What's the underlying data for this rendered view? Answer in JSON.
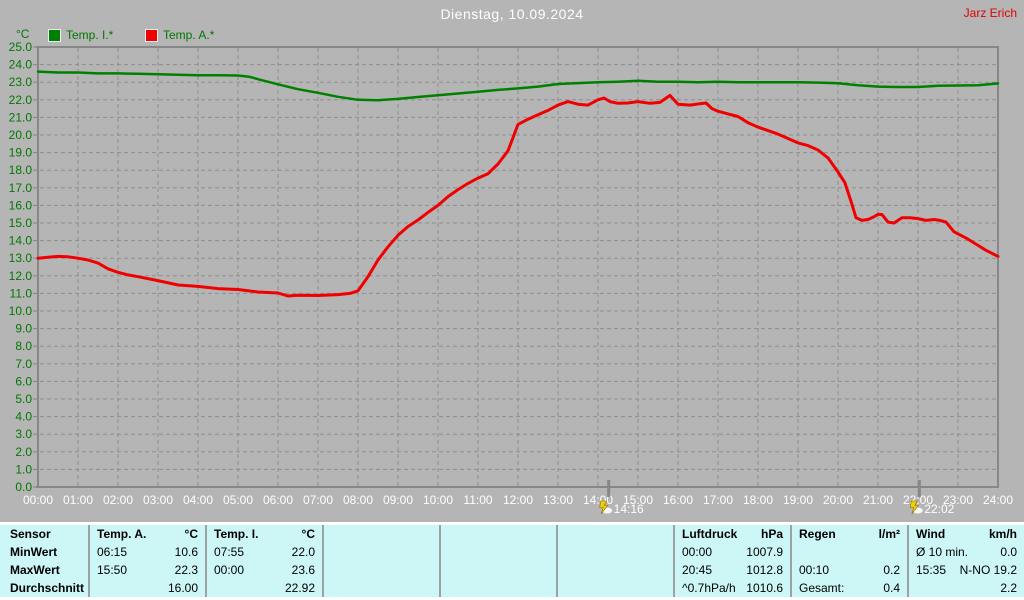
{
  "header": {
    "title": "Dienstag, 10.09.2024",
    "station": "Jarz Erich"
  },
  "legend": {
    "unit": "°C",
    "items": [
      {
        "label": "Temp. I.*",
        "color": "#008000"
      },
      {
        "label": "Temp. A.*",
        "color": "#f00000"
      }
    ]
  },
  "colors": {
    "background": "#b5b5b5",
    "grid": "#8e8e8e",
    "axis": "#878787",
    "axis_label_y": "#007800",
    "axis_label_x": "#ffffff",
    "title_text": "#ffffff",
    "station_text": "#e00000",
    "table_bg": "#cdf6f6",
    "temp_inside": "#008000",
    "temp_outside": "#f00000"
  },
  "chart_data": {
    "type": "line",
    "title": "Dienstag, 10.09.2024",
    "ylabel": "°C",
    "ylim": [
      0,
      25
    ],
    "ytick_step": 1,
    "ytick_decimals": 1,
    "xlim_hours": [
      0,
      24
    ],
    "xtick_labels": [
      "00:00",
      "01:00",
      "02:00",
      "03:00",
      "04:00",
      "05:00",
      "06:00",
      "07:00",
      "08:00",
      "09:00",
      "10:00",
      "11:00",
      "12:00",
      "13:00",
      "14:00",
      "15:00",
      "16:00",
      "17:00",
      "18:00",
      "19:00",
      "20:00",
      "21:00",
      "22:00",
      "23:00",
      "24:00"
    ],
    "grid": true,
    "legend_position": "top-left",
    "series": [
      {
        "name": "Temp. I.*",
        "color": "#008000",
        "points": [
          [
            0,
            23.6
          ],
          [
            0.5,
            23.55
          ],
          [
            1,
            23.55
          ],
          [
            1.5,
            23.5
          ],
          [
            2,
            23.5
          ],
          [
            2.5,
            23.48
          ],
          [
            3,
            23.45
          ],
          [
            3.5,
            23.42
          ],
          [
            4,
            23.4
          ],
          [
            4.5,
            23.4
          ],
          [
            5,
            23.38
          ],
          [
            5.3,
            23.3
          ],
          [
            5.5,
            23.17
          ],
          [
            6,
            22.88
          ],
          [
            6.5,
            22.6
          ],
          [
            7,
            22.4
          ],
          [
            7.5,
            22.17
          ],
          [
            8,
            22.0
          ],
          [
            8.5,
            21.98
          ],
          [
            9,
            22.05
          ],
          [
            9.5,
            22.16
          ],
          [
            10,
            22.26
          ],
          [
            10.5,
            22.36
          ],
          [
            11,
            22.46
          ],
          [
            11.5,
            22.56
          ],
          [
            12,
            22.65
          ],
          [
            12.5,
            22.75
          ],
          [
            13,
            22.9
          ],
          [
            13.5,
            22.95
          ],
          [
            14,
            23.0
          ],
          [
            14.5,
            23.02
          ],
          [
            15,
            23.08
          ],
          [
            15.5,
            23.02
          ],
          [
            16,
            23.02
          ],
          [
            16.5,
            23.0
          ],
          [
            17,
            23.02
          ],
          [
            17.5,
            23.0
          ],
          [
            18,
            23.0
          ],
          [
            18.5,
            23.0
          ],
          [
            19,
            23.0
          ],
          [
            19.5,
            22.98
          ],
          [
            20,
            22.94
          ],
          [
            20.5,
            22.83
          ],
          [
            21,
            22.75
          ],
          [
            21.5,
            22.73
          ],
          [
            22,
            22.73
          ],
          [
            22.5,
            22.8
          ],
          [
            23,
            22.81
          ],
          [
            23.5,
            22.83
          ],
          [
            24,
            22.93
          ]
        ]
      },
      {
        "name": "Temp. A.*",
        "color": "#f00000",
        "points": [
          [
            0,
            13.0
          ],
          [
            0.25,
            13.05
          ],
          [
            0.5,
            13.1
          ],
          [
            0.75,
            13.08
          ],
          [
            1,
            13.0
          ],
          [
            1.25,
            12.9
          ],
          [
            1.5,
            12.72
          ],
          [
            1.75,
            12.4
          ],
          [
            2,
            12.2
          ],
          [
            2.25,
            12.05
          ],
          [
            2.5,
            11.95
          ],
          [
            3,
            11.73
          ],
          [
            3.5,
            11.48
          ],
          [
            4,
            11.4
          ],
          [
            4.5,
            11.27
          ],
          [
            5,
            11.22
          ],
          [
            5.5,
            11.08
          ],
          [
            6,
            11.02
          ],
          [
            6.25,
            10.85
          ],
          [
            6.5,
            10.9
          ],
          [
            7,
            10.88
          ],
          [
            7.5,
            10.93
          ],
          [
            7.8,
            11.0
          ],
          [
            8,
            11.15
          ],
          [
            8.25,
            11.95
          ],
          [
            8.5,
            12.9
          ],
          [
            8.75,
            13.65
          ],
          [
            9,
            14.3
          ],
          [
            9.25,
            14.8
          ],
          [
            9.5,
            15.17
          ],
          [
            9.75,
            15.6
          ],
          [
            10,
            16.0
          ],
          [
            10.25,
            16.5
          ],
          [
            10.5,
            16.9
          ],
          [
            10.75,
            17.25
          ],
          [
            11,
            17.55
          ],
          [
            11.25,
            17.8
          ],
          [
            11.5,
            18.35
          ],
          [
            11.75,
            19.1
          ],
          [
            12,
            20.6
          ],
          [
            12.25,
            20.9
          ],
          [
            12.5,
            21.15
          ],
          [
            12.75,
            21.4
          ],
          [
            13,
            21.7
          ],
          [
            13.25,
            21.9
          ],
          [
            13.5,
            21.75
          ],
          [
            13.75,
            21.7
          ],
          [
            14,
            22.0
          ],
          [
            14.15,
            22.1
          ],
          [
            14.3,
            21.9
          ],
          [
            14.5,
            21.8
          ],
          [
            14.75,
            21.82
          ],
          [
            15,
            21.9
          ],
          [
            15.3,
            21.8
          ],
          [
            15.55,
            21.85
          ],
          [
            15.8,
            22.25
          ],
          [
            16,
            21.75
          ],
          [
            16.3,
            21.7
          ],
          [
            16.55,
            21.78
          ],
          [
            16.7,
            21.82
          ],
          [
            16.85,
            21.5
          ],
          [
            17,
            21.35
          ],
          [
            17.25,
            21.2
          ],
          [
            17.5,
            21.05
          ],
          [
            17.75,
            20.7
          ],
          [
            18,
            20.45
          ],
          [
            18.25,
            20.25
          ],
          [
            18.5,
            20.05
          ],
          [
            18.75,
            19.8
          ],
          [
            19,
            19.55
          ],
          [
            19.25,
            19.4
          ],
          [
            19.5,
            19.15
          ],
          [
            19.75,
            18.7
          ],
          [
            20,
            17.9
          ],
          [
            20.17,
            17.3
          ],
          [
            20.33,
            16.2
          ],
          [
            20.45,
            15.3
          ],
          [
            20.6,
            15.15
          ],
          [
            20.75,
            15.2
          ],
          [
            20.9,
            15.35
          ],
          [
            21,
            15.5
          ],
          [
            21.1,
            15.48
          ],
          [
            21.25,
            15.05
          ],
          [
            21.4,
            15.0
          ],
          [
            21.6,
            15.3
          ],
          [
            21.8,
            15.3
          ],
          [
            22,
            15.25
          ],
          [
            22.2,
            15.15
          ],
          [
            22.4,
            15.2
          ],
          [
            22.55,
            15.15
          ],
          [
            22.7,
            15.05
          ],
          [
            22.9,
            14.5
          ],
          [
            23.2,
            14.15
          ],
          [
            23.45,
            13.8
          ],
          [
            23.7,
            13.45
          ],
          [
            24,
            13.1
          ]
        ]
      }
    ],
    "event_markers": [
      {
        "time": "14:16",
        "hour": 14.267,
        "icon": "lightning-cloud-icon"
      },
      {
        "time": "22:02",
        "hour": 22.033,
        "icon": "lightning-cloud-icon"
      }
    ]
  },
  "stats_table": {
    "row_labels": [
      "Sensor",
      "MinWert",
      "MaxWert",
      "Durchschnitt"
    ],
    "columns": [
      {
        "title": "Temp. A.",
        "unit": "°C",
        "cells": [
          {
            "t": "06:15",
            "v": "10.6"
          },
          {
            "t": "15:50",
            "v": "22.3"
          },
          {
            "t": "",
            "v": "16.00"
          }
        ]
      },
      {
        "title": "Temp. I.",
        "unit": "°C",
        "cells": [
          {
            "t": "07:55",
            "v": "22.0"
          },
          {
            "t": "00:00",
            "v": "23.6"
          },
          {
            "t": "",
            "v": "22.92"
          }
        ]
      },
      {
        "title": "",
        "unit": "",
        "cells": [
          {
            "t": "",
            "v": ""
          },
          {
            "t": "",
            "v": ""
          },
          {
            "t": "",
            "v": ""
          }
        ]
      },
      {
        "title": "",
        "unit": "",
        "cells": [
          {
            "t": "",
            "v": ""
          },
          {
            "t": "",
            "v": ""
          },
          {
            "t": "",
            "v": ""
          }
        ]
      },
      {
        "title": "",
        "unit": "",
        "cells": [
          {
            "t": "",
            "v": ""
          },
          {
            "t": "",
            "v": ""
          },
          {
            "t": "",
            "v": ""
          }
        ]
      },
      {
        "title": "Luftdruck",
        "unit": "hPa",
        "cells": [
          {
            "t": "00:00",
            "v": "1007.9"
          },
          {
            "t": "20:45",
            "v": "1012.8"
          },
          {
            "t": "^0.7hPa/h",
            "v": "1010.6"
          }
        ]
      },
      {
        "title": "Regen",
        "unit": "l/m²",
        "cells": [
          {
            "t": "",
            "v": ""
          },
          {
            "t": "00:10",
            "v": "0.2"
          },
          {
            "t": "Gesamt:",
            "v": "0.4"
          }
        ]
      },
      {
        "title": "Wind",
        "unit": "km/h",
        "cells": [
          {
            "t": "Ø 10 min.",
            "v": "0.0"
          },
          {
            "t": "15:35",
            "v": "N-NO 19.2"
          },
          {
            "t": "",
            "v": "2.2"
          }
        ]
      }
    ]
  }
}
